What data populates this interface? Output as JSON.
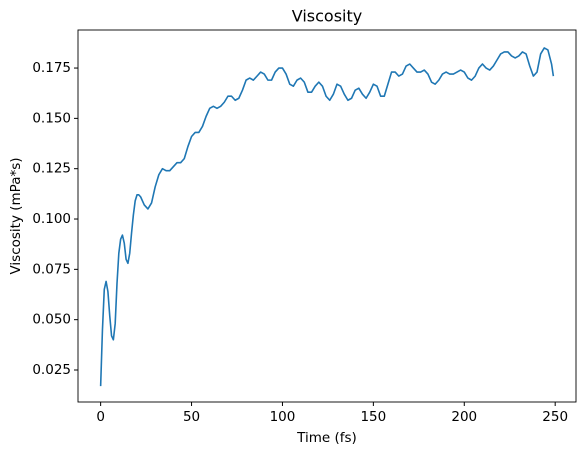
{
  "chart_data": {
    "type": "line",
    "title": "Viscosity",
    "x_label": "Time (fs)",
    "y_label": "Viscosity (mPa*s)",
    "x": [
      0,
      1,
      2,
      3,
      4,
      5,
      6,
      7,
      8,
      9,
      10,
      11,
      12,
      13,
      14,
      15,
      16,
      17,
      18,
      19,
      20,
      21,
      22,
      24,
      26,
      28,
      30,
      32,
      34,
      36,
      38,
      40,
      42,
      44,
      46,
      48,
      50,
      52,
      54,
      56,
      58,
      60,
      62,
      64,
      66,
      68,
      70,
      72,
      74,
      76,
      78,
      80,
      82,
      84,
      86,
      88,
      90,
      92,
      94,
      96,
      98,
      100,
      102,
      104,
      106,
      108,
      110,
      112,
      114,
      116,
      118,
      120,
      122,
      124,
      126,
      128,
      130,
      132,
      134,
      136,
      138,
      140,
      142,
      144,
      146,
      148,
      150,
      152,
      154,
      156,
      158,
      160,
      162,
      164,
      166,
      168,
      170,
      172,
      174,
      176,
      178,
      180,
      182,
      184,
      186,
      188,
      190,
      192,
      194,
      196,
      198,
      200,
      202,
      204,
      206,
      208,
      210,
      212,
      214,
      216,
      218,
      220,
      222,
      224,
      226,
      228,
      230,
      232,
      234,
      236,
      238,
      240,
      242,
      244,
      246,
      248,
      249
    ],
    "series": [
      {
        "name": "Viscosity",
        "color": "#1f77b4",
        "values": [
          0.017,
          0.045,
          0.065,
          0.069,
          0.064,
          0.052,
          0.042,
          0.04,
          0.048,
          0.068,
          0.083,
          0.09,
          0.092,
          0.088,
          0.08,
          0.078,
          0.083,
          0.093,
          0.102,
          0.109,
          0.112,
          0.112,
          0.111,
          0.107,
          0.105,
          0.108,
          0.116,
          0.122,
          0.125,
          0.124,
          0.124,
          0.126,
          0.128,
          0.128,
          0.13,
          0.136,
          0.141,
          0.143,
          0.143,
          0.146,
          0.151,
          0.155,
          0.156,
          0.155,
          0.156,
          0.158,
          0.161,
          0.161,
          0.159,
          0.16,
          0.164,
          0.169,
          0.17,
          0.169,
          0.171,
          0.173,
          0.172,
          0.169,
          0.169,
          0.173,
          0.175,
          0.175,
          0.172,
          0.167,
          0.166,
          0.169,
          0.17,
          0.168,
          0.163,
          0.163,
          0.166,
          0.168,
          0.166,
          0.161,
          0.159,
          0.162,
          0.167,
          0.166,
          0.162,
          0.159,
          0.16,
          0.164,
          0.165,
          0.162,
          0.16,
          0.163,
          0.167,
          0.166,
          0.161,
          0.161,
          0.167,
          0.173,
          0.173,
          0.171,
          0.172,
          0.176,
          0.177,
          0.175,
          0.173,
          0.173,
          0.174,
          0.172,
          0.168,
          0.167,
          0.169,
          0.172,
          0.173,
          0.172,
          0.172,
          0.173,
          0.174,
          0.173,
          0.17,
          0.169,
          0.171,
          0.175,
          0.177,
          0.175,
          0.174,
          0.176,
          0.179,
          0.182,
          0.183,
          0.183,
          0.181,
          0.18,
          0.181,
          0.183,
          0.182,
          0.176,
          0.171,
          0.173,
          0.182,
          0.185,
          0.184,
          0.177,
          0.171
        ]
      }
    ],
    "xlim": [
      -12.45,
      261.45
    ],
    "xticks": [
      0,
      50,
      100,
      150,
      200,
      250
    ],
    "ylim": [
      0.0091,
      0.1939
    ],
    "yticks": [
      {
        "value": 0.025,
        "label": "0.025"
      },
      {
        "value": 0.05,
        "label": "0.050"
      },
      {
        "value": 0.075,
        "label": "0.075"
      },
      {
        "value": 0.1,
        "label": "0.100"
      },
      {
        "value": 0.125,
        "label": "0.125"
      },
      {
        "value": 0.15,
        "label": "0.150"
      },
      {
        "value": 0.175,
        "label": "0.175"
      }
    ]
  }
}
